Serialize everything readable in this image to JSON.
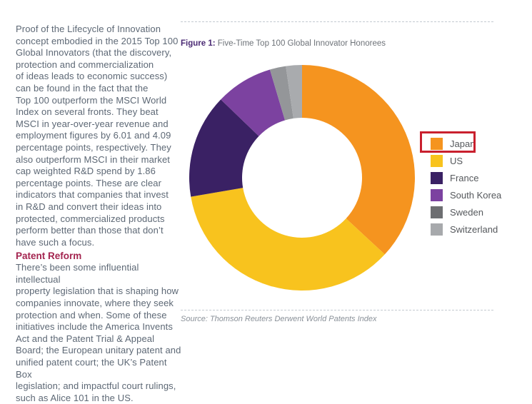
{
  "left_column": {
    "paragraph1": "Proof of the Lifecycle of Innovation\nconcept embodied in the 2015 Top 100\nGlobal Innovators (that the discovery,\nprotection and commercialization\nof ideas leads to economic success)\ncan be found in the fact that the\nTop 100 outperform the MSCI World\nIndex on several fronts. They beat\nMSCI in year-over-year revenue and\nemployment figures by 6.01 and 4.09\npercentage points, respectively. They\nalso outperform MSCI in their market\ncap weighted R&D spend by 1.86\npercentage points. These are clear\nindicators that companies that invest\nin R&D and convert their ideas into\nprotected, commercialized products\nperform better than those that don’t\nhave such a focus.",
    "heading2": "Patent Reform",
    "paragraph2": "There’s been some influential intellectual\nproperty legislation that is shaping how\ncompanies innovate, where they seek\nprotection and when. Some of these\ninitiatives include the America Invents\nAct and the Patent Trial & Appeal\nBoard; the European unitary patent and\nunified patent court; the UK’s Patent Box\nlegislation; and impactful court rulings,\nsuch as Alice 101 in the US."
  },
  "figure": {
    "label": "Figure 1:",
    "title": " Five-Time Top 100 Global Innovator Honorees",
    "source": "Source: Thomson Reuters Derwent World Patents Index"
  },
  "chart_data": {
    "type": "pie",
    "subtype": "donut",
    "title": "Five-Time Top 100 Global Innovator Honorees",
    "categories": [
      "Japan",
      "US",
      "France",
      "South Korea",
      "Sweden",
      "Switzerland"
    ],
    "values": [
      36.9,
      35.4,
      14.9,
      8.2,
      2.3,
      2.3
    ],
    "units": "percent (estimated from arc angles, no data labels shown)",
    "start_angle_deg": 0,
    "direction": "clockwise",
    "inner_radius_ratio": 0.53,
    "slice_colors": [
      "#F5941F",
      "#F8C31E",
      "#3A2164",
      "#7C42A0",
      "#949699",
      "#A9ABAE"
    ],
    "legend_colors": [
      "#F5941F",
      "#F8C31E",
      "#3A2164",
      "#7C42A0",
      "#6D6E71",
      "#A7A9AC"
    ],
    "legend_position": "right",
    "annotation": {
      "type": "highlight-box",
      "target": "Japan",
      "color": "#C9202E"
    }
  },
  "colors": {
    "body_text": "#5D6875",
    "heading_red": "#A3244F",
    "figure_label_purple": "#4A2A74",
    "figure_title_gray": "#6D7278",
    "legend_text": "#55585C",
    "source_text": "#8A9199",
    "dashed_rule": "#C4CAD0",
    "highlight_red": "#C9202E",
    "background": "#FFFFFF"
  }
}
